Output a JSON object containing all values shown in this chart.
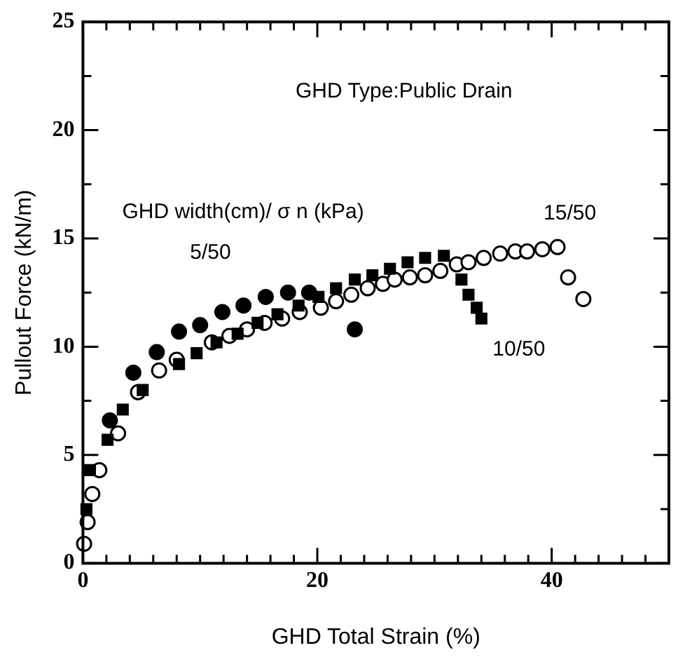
{
  "chart_data": {
    "type": "scatter",
    "xlabel": "GHD Total Strain (%)",
    "ylabel": "Pullout Force (kN/m)",
    "annotations": [
      "GHD Type:Public Drain",
      "GHD width(cm)/ σ n (kPa)"
    ],
    "xlim": [
      0,
      50
    ],
    "ylim": [
      0,
      25
    ],
    "xticks": [
      0,
      {
        "value": 2,
        "label": null
      },
      {
        "value": 4,
        "label": null
      },
      {
        "value": 6,
        "label": null
      },
      {
        "value": 8,
        "label": null
      },
      {
        "value": 10,
        "label": null
      },
      {
        "value": 12,
        "label": null
      },
      {
        "value": 14,
        "label": null
      },
      {
        "value": 16,
        "label": null
      },
      {
        "value": 18,
        "label": null
      },
      20,
      {
        "value": 22,
        "label": null
      },
      {
        "value": 24,
        "label": null
      },
      {
        "value": 26,
        "label": null
      },
      {
        "value": 28,
        "label": null
      },
      {
        "value": 30,
        "label": null
      },
      {
        "value": 32,
        "label": null
      },
      {
        "value": 34,
        "label": null
      },
      {
        "value": 36,
        "label": null
      },
      {
        "value": 38,
        "label": null
      },
      40,
      {
        "value": 42,
        "label": null
      },
      {
        "value": 44,
        "label": null
      },
      {
        "value": 46,
        "label": null
      },
      {
        "value": 48,
        "label": null
      },
      {
        "value": 50,
        "label": null
      }
    ],
    "yticks": [
      0,
      {
        "value": 2.5,
        "label": null
      },
      5,
      {
        "value": 7.5,
        "label": null
      },
      10,
      {
        "value": 12.5,
        "label": null
      },
      15,
      {
        "value": 17.5,
        "label": null
      },
      20,
      {
        "value": 22.5,
        "label": null
      },
      25
    ],
    "grid": false,
    "legend": false,
    "series": [
      {
        "name": "5/50",
        "color": "#000000",
        "marker": "circle",
        "x": [
          2.3,
          4.3,
          6.3,
          8.2,
          10.0,
          11.9,
          13.7,
          15.6,
          17.5,
          19.3,
          23.2
        ],
        "values": [
          6.6,
          8.8,
          9.75,
          10.7,
          11.0,
          11.6,
          11.9,
          12.3,
          12.5,
          12.5,
          10.8
        ]
      },
      {
        "name": "10/50",
        "color": "#000000",
        "marker": "square",
        "x": [
          0.3,
          0.6,
          2.1,
          3.4,
          5.1,
          8.2,
          9.7,
          11.4,
          13.2,
          14.9,
          16.6,
          18.4,
          20.1,
          21.6,
          23.2,
          24.7,
          26.2,
          27.7,
          29.2,
          30.8,
          32.3,
          32.9,
          33.6,
          34.0
        ],
        "values": [
          2.5,
          4.3,
          5.7,
          7.1,
          8.0,
          9.2,
          9.7,
          10.2,
          10.6,
          11.1,
          11.5,
          11.9,
          12.3,
          12.7,
          13.1,
          13.3,
          13.6,
          13.9,
          14.1,
          14.2,
          13.1,
          12.4,
          11.8,
          11.3
        ]
      },
      {
        "name": "15/50",
        "color": "#ffffff",
        "marker": "circle",
        "x": [
          0.1,
          0.4,
          0.8,
          1.4,
          3.0,
          4.7,
          6.5,
          8.0,
          11.0,
          12.5,
          14.0,
          15.5,
          17.0,
          18.5,
          20.3,
          21.6,
          22.9,
          24.3,
          25.6,
          26.6,
          27.9,
          29.2,
          30.5,
          31.9,
          32.9,
          34.2,
          35.6,
          36.9,
          37.9,
          39.2,
          40.5,
          41.4,
          42.7
        ],
        "values": [
          0.9,
          1.9,
          3.2,
          4.3,
          6.0,
          7.9,
          8.9,
          9.4,
          10.2,
          10.5,
          10.8,
          11.1,
          11.3,
          11.6,
          11.8,
          12.1,
          12.4,
          12.7,
          12.9,
          13.1,
          13.2,
          13.3,
          13.5,
          13.8,
          13.9,
          14.1,
          14.3,
          14.4,
          14.4,
          14.5,
          14.6,
          13.2,
          12.2
        ]
      }
    ]
  }
}
